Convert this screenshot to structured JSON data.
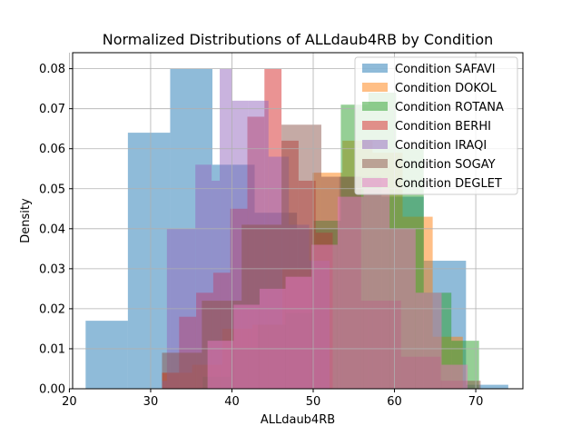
{
  "chart_data": {
    "type": "bar",
    "subtype": "overlapping-histogram",
    "title": "Normalized Distributions of ALLdaub4RB by Condition",
    "xlabel": "ALLdaub4RB",
    "ylabel": "Density",
    "xlim": [
      20.4,
      75.8
    ],
    "ylim": [
      0,
      0.084
    ],
    "xticks": [
      20,
      30,
      40,
      50,
      60,
      70
    ],
    "yticks": [
      0.0,
      0.01,
      0.02,
      0.03,
      0.04,
      0.05,
      0.06,
      0.07,
      0.08
    ],
    "grid": true,
    "legend_position": "top-right",
    "series": [
      {
        "name": "Condition SAFAVI",
        "color": "#1f77b4",
        "bin_edges": [
          22.0,
          27.2,
          32.4,
          37.6,
          42.8,
          48.0,
          53.2,
          58.4,
          63.6,
          68.8,
          74.0
        ],
        "values": [
          0.017,
          0.064,
          0.08,
          0.056,
          0.044,
          0.04,
          0.053,
          0.048,
          0.032,
          0.001
        ]
      },
      {
        "name": "Condition DOKOL",
        "color": "#ff7f0e",
        "bin_edges": [
          31.4,
          35.1,
          38.8,
          42.5,
          46.2,
          49.9,
          53.6,
          57.3,
          61.0,
          64.7,
          68.4
        ],
        "values": [
          0.004,
          0.006,
          0.015,
          0.016,
          0.03,
          0.054,
          0.062,
          0.059,
          0.043,
          0.013
        ]
      },
      {
        "name": "Condition ROTANA",
        "color": "#2ca02c",
        "bin_edges": [
          36.4,
          39.8,
          43.2,
          46.6,
          50.0,
          53.4,
          56.8,
          60.2,
          63.6,
          67.0,
          70.4
        ],
        "values": [
          0.003,
          0.01,
          0.016,
          0.019,
          0.042,
          0.071,
          0.074,
          0.06,
          0.024,
          0.012
        ]
      },
      {
        "name": "Condition BERHI",
        "color": "#d62728",
        "bin_edges": [
          31.4,
          33.5,
          35.6,
          37.7,
          39.8,
          41.9,
          44.0,
          46.1,
          48.2,
          50.3,
          52.4
        ],
        "values": [
          0.004,
          0.018,
          0.024,
          0.029,
          0.045,
          0.068,
          0.08,
          0.062,
          0.052,
          0.039
        ]
      },
      {
        "name": "Condition IRAQI",
        "color": "#9467bd",
        "bin_edges": [
          31.4,
          32.0,
          35.5,
          37.5,
          38.5,
          40.0,
          42.0,
          44.5,
          47.0,
          49.5,
          52.0
        ],
        "values": [
          0.002,
          0.04,
          0.056,
          0.052,
          0.08,
          0.072,
          0.072,
          0.058,
          0.041,
          0.032
        ]
      },
      {
        "name": "Condition SOGAY",
        "color": "#8c564b",
        "bin_edges": [
          31.4,
          36.3,
          41.2,
          46.1,
          51.0,
          55.9,
          60.8,
          65.7,
          70.6,
          75.5,
          80.4
        ],
        "values": [
          0.009,
          0.022,
          0.041,
          0.066,
          0.053,
          0.022,
          0.008,
          0.002,
          0.0,
          0.0
        ]
      },
      {
        "name": "Condition DEGLET",
        "color": "#e377c2",
        "bin_edges": [
          37.0,
          40.2,
          43.4,
          46.6,
          49.8,
          53.0,
          56.2,
          59.4,
          62.6,
          65.8,
          69.0
        ],
        "values": [
          0.012,
          0.021,
          0.025,
          0.028,
          0.036,
          0.048,
          0.05,
          0.04,
          0.024,
          0.006
        ]
      }
    ]
  }
}
